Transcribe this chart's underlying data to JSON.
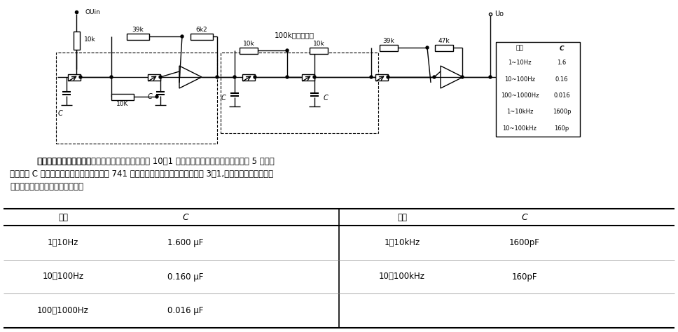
{
  "bg_color": "#ffffff",
  "text_color": "#000000",
  "circuit": {
    "uin_label": "OUin",
    "r_10k_left": "10k",
    "r_39k_1": "39k",
    "r_6k2": "6k2",
    "pot_label": "100k四联电分器",
    "r_10k_a": "10k",
    "r_10k_b": "10k",
    "r_39k_2": "39k",
    "r_47k": "47k",
    "uo_label": "Uo",
    "c_label": "C",
    "r_10K_mid": "10K",
    "tbl_headers": [
      "范围",
      "C"
    ],
    "tbl_rows": [
      [
        "1~10Hz",
        "1.6"
      ],
      [
        "10~100Hz",
        "0.16"
      ],
      [
        "100~1000Hz",
        "0.016"
      ],
      [
        "1~10kHz",
        "1600p"
      ],
      [
        "10~100kHz",
        "160p"
      ]
    ]
  },
  "desc_line1": "可调谐的四阶低通滤波器　用四只联调电位器，可在 10：1 的范围内改变截止频率。表中给出 5 种不同",
  "desc_line2": "的电容量 C 及所对应的频率范围。运放选用 741 或类似产品。如果调谐范围限制为 3：1,并选用电容开关，用快",
  "desc_line3": "速联调电位器可得到满意的效果。",
  "table_headers_left": [
    "范围",
    "C"
  ],
  "table_headers_right": [
    "范围",
    "C"
  ],
  "table_rows_left": [
    [
      "1～10Hz",
      "1.600 μF"
    ],
    [
      "10～100Hz",
      "0.160 μF"
    ],
    [
      "100～1000Hz",
      "0.016 μF"
    ]
  ],
  "table_rows_right": [
    [
      "1～10kHz",
      "1600pF"
    ],
    [
      "10～100kHz",
      "160pF"
    ],
    [
      "",
      ""
    ]
  ]
}
